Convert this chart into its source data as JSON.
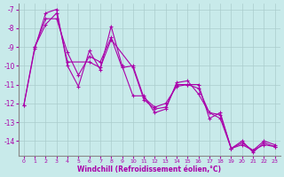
{
  "xlabel": "Windchill (Refroidissement éolien,°C)",
  "bg_color": "#c8eaea",
  "line_color": "#aa00aa",
  "grid_color": "#aacccc",
  "series1_x": [
    0,
    1,
    2,
    3,
    4,
    5,
    6,
    7,
    8,
    9,
    10,
    11,
    12,
    13,
    14,
    15,
    16,
    17,
    18,
    19,
    20,
    21,
    22,
    23
  ],
  "series1_y": [
    -12.1,
    -9.1,
    -7.2,
    -7.0,
    -10.0,
    -11.1,
    -9.2,
    -10.2,
    -7.9,
    -10.0,
    -11.6,
    -11.6,
    -12.5,
    -12.3,
    -10.9,
    -10.8,
    -11.5,
    -12.5,
    -12.8,
    -14.4,
    -14.1,
    -14.5,
    -14.0,
    -14.2
  ],
  "series2_x": [
    1,
    2,
    3,
    4,
    5,
    6,
    7,
    8,
    9,
    10,
    11,
    12,
    13,
    14,
    15,
    16,
    17,
    18,
    19,
    20,
    21,
    22,
    23
  ],
  "series2_y": [
    -9.0,
    -7.5,
    -7.5,
    -9.3,
    -10.5,
    -9.5,
    -9.8,
    -8.5,
    -10.1,
    -10.0,
    -11.7,
    -12.2,
    -12.0,
    -11.1,
    -11.0,
    -11.0,
    -12.8,
    -12.5,
    -14.4,
    -14.2,
    -14.5,
    -14.2,
    -14.3
  ],
  "series3_x": [
    0,
    1,
    2,
    3,
    4,
    6,
    7,
    8,
    10,
    11,
    12,
    13,
    14,
    15,
    16,
    17,
    18,
    19,
    20,
    21,
    22,
    23
  ],
  "series3_y": [
    -12.1,
    -9.0,
    -7.8,
    -7.2,
    -9.8,
    -9.8,
    -10.1,
    -8.6,
    -10.1,
    -11.8,
    -12.3,
    -12.2,
    -11.0,
    -11.0,
    -11.2,
    -12.5,
    -12.6,
    -14.4,
    -14.0,
    -14.6,
    -14.1,
    -14.3
  ],
  "ylim": [
    -14.8,
    -6.7
  ],
  "xlim": [
    -0.5,
    23.5
  ],
  "yticks": [
    -7,
    -8,
    -9,
    -10,
    -11,
    -12,
    -13,
    -14
  ],
  "xticks": [
    0,
    1,
    2,
    3,
    4,
    5,
    6,
    7,
    8,
    9,
    10,
    11,
    12,
    13,
    14,
    15,
    16,
    17,
    18,
    19,
    20,
    21,
    22,
    23
  ],
  "marker": "+"
}
